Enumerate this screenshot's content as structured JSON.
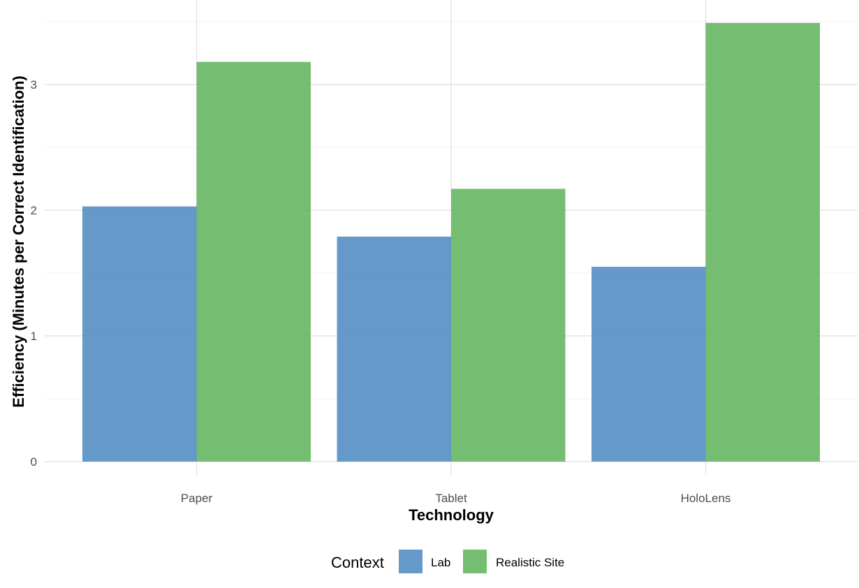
{
  "chart_data": {
    "type": "bar",
    "categories": [
      "Paper",
      "Tablet",
      "HoloLens"
    ],
    "series": [
      {
        "name": "Lab",
        "values": [
          2.03,
          1.79,
          1.55
        ],
        "color": "#4f8bc2"
      },
      {
        "name": "Realistic Site",
        "values": [
          3.18,
          2.17,
          3.49
        ],
        "color": "#62b45d"
      }
    ],
    "xlabel": "Technology",
    "ylabel": "Efficiency (Minutes per Correct Identification)",
    "ylim": [
      0,
      3.5
    ],
    "yticks": [
      0,
      1,
      2,
      3
    ],
    "yticks_labels": [
      "0",
      "1",
      "2",
      "3"
    ],
    "grid": true,
    "legend": {
      "title": "Context",
      "position": "bottom"
    }
  }
}
